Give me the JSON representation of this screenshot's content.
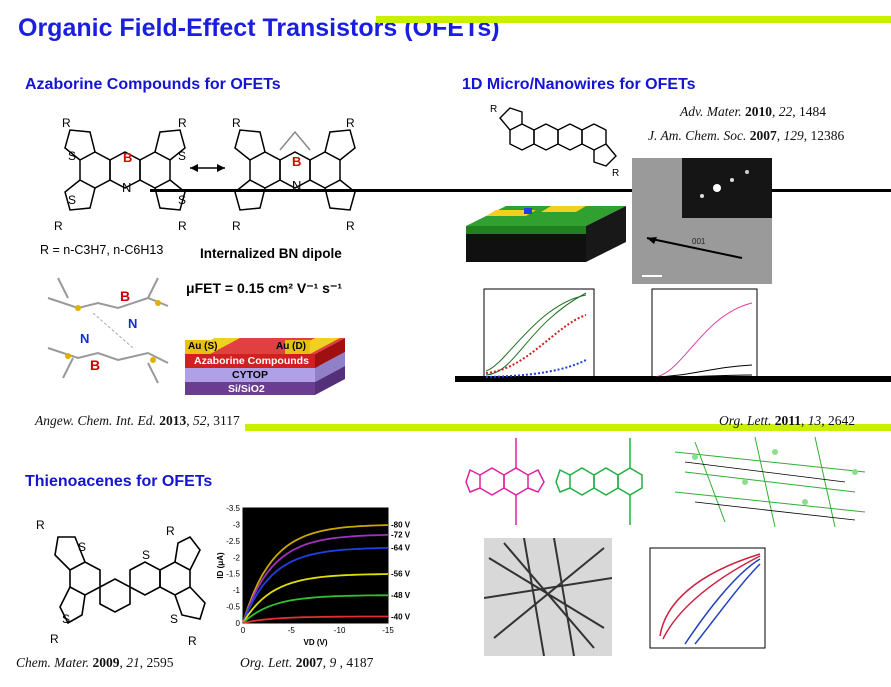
{
  "title": "Organic Field-Effect Transistors (OFETs)",
  "sections": {
    "azaborine": "Azaborine Compounds for OFETs",
    "nanowires": "1D Micro/Nanowires for OFETs",
    "thienoacenes": "Thienoacenes for OFETs"
  },
  "azaborine_panel": {
    "r_def_main": "R = n-C3H7, n-C6H13",
    "dipole": "Internalized BN dipole",
    "mobility": "μFET = 0.15 cm² V⁻¹ s⁻¹",
    "device_layers": [
      "Au (S)",
      "Au (D)",
      "Azaborine Compounds",
      "CYTOP",
      "Si/SiO2"
    ]
  },
  "refs": {
    "advmater": {
      "journal": "Adv. Mater.",
      "year": "2010",
      "vol": "22",
      "page": "1484"
    },
    "jacs": {
      "journal": "J. Am. Chem. Soc.",
      "year": "2007",
      "vol": "129",
      "page": "12386"
    },
    "angew": {
      "journal": "Angew. Chem. Int. Ed.",
      "year": "2013",
      "vol": "52",
      "page": "3117"
    },
    "orglett2011": {
      "journal": "Org. Lett.",
      "year": "2011",
      "vol": "13",
      "page": "2642"
    },
    "chemmater": {
      "journal": "Chem. Mater.",
      "year": "2009",
      "vol": "21",
      "page": "2595"
    },
    "orglett2007": {
      "journal": "Org. Lett.",
      "year": "2007",
      "vol": "9",
      "page": "4187"
    }
  },
  "colors": {
    "title": "#1a1ee0",
    "section": "#1414d2",
    "lime": "#c8f000"
  },
  "chart_data": [
    {
      "type": "line",
      "xlabel": "VD (V)",
      "ylabel": "ID (μA)",
      "xticks": [
        "0",
        "-5",
        "-10",
        "-15"
      ],
      "yticks": [
        "0",
        "-0.5",
        "-1",
        "-1.5",
        "-2",
        "-2.5",
        "-3",
        "-3.5"
      ],
      "xlim": [
        0,
        -15
      ],
      "ylim": [
        0,
        -3.5
      ],
      "series": [
        {
          "name": "-80 V",
          "color": "#c8a800",
          "sat": -3.0
        },
        {
          "name": "-72 V",
          "color": "#a030c0",
          "sat": -2.7
        },
        {
          "name": "-64 V",
          "color": "#2040e0",
          "sat": -2.3
        },
        {
          "name": "-56 V",
          "color": "#e0e000",
          "sat": -1.5
        },
        {
          "name": "-48 V",
          "color": "#30c030",
          "sat": -0.85
        },
        {
          "name": "-40 V",
          "color": "#e03030",
          "sat": -0.2
        }
      ]
    }
  ]
}
